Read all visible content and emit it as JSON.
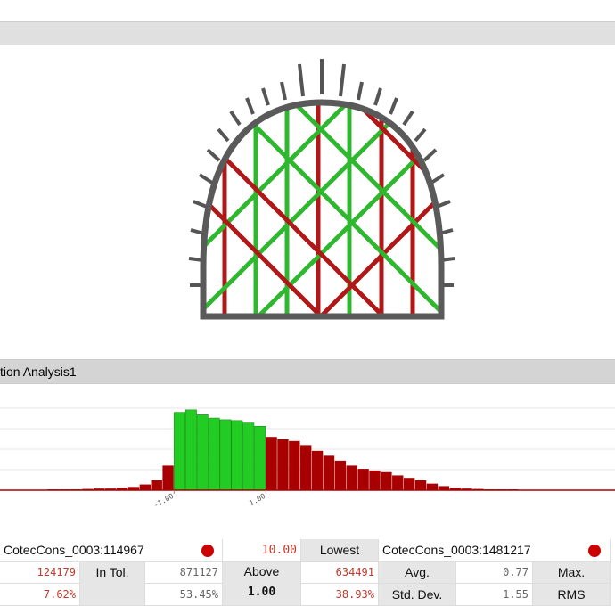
{
  "panel_title": "tion Analysis1",
  "histogram": {
    "type": "histogram",
    "bins": [
      -4.75,
      -4.5,
      -4.25,
      -4,
      -3.75,
      -3.5,
      -3.25,
      -3,
      -2.75,
      -2.5,
      -2.25,
      -2,
      -1.75,
      -1.5,
      -1.25,
      -1,
      -0.75,
      -0.5,
      -0.25,
      0,
      0.25,
      0.5,
      0.75,
      1,
      1.25,
      1.5,
      1.75,
      2,
      2.25,
      2.5,
      2.75,
      3,
      3.25,
      3.5,
      3.75,
      4,
      4.25,
      4.5,
      4.75,
      5,
      5.25,
      5.5,
      5.75,
      6,
      6.25,
      6.5,
      6.75,
      7,
      7.25,
      7.5,
      7.75,
      8,
      8.25,
      8.5
    ],
    "values": [
      0.5,
      0.5,
      0.5,
      0.5,
      1,
      1,
      1,
      1.5,
      2,
      2,
      3,
      4,
      7,
      12,
      30,
      95,
      98,
      92,
      88,
      86,
      85,
      82,
      78,
      65,
      62,
      60,
      55,
      48,
      42,
      36,
      30,
      26,
      24,
      22,
      18,
      15,
      12,
      8,
      5,
      3,
      2,
      1.5,
      1,
      1,
      1,
      0.5,
      0.5,
      0.5,
      0.5,
      0.5,
      0.5,
      0.5,
      0.5
    ],
    "xlim": [
      -4.79,
      8.6
    ],
    "ylim": [
      0,
      100
    ],
    "xticks": [
      {
        "value": -1,
        "label": "-1.00"
      },
      {
        "value": 1,
        "label": "1.00"
      }
    ],
    "in_color": "#22cc22",
    "out_color": "#a80000"
  },
  "table": {
    "row0": {
      "name1": "CotecCons_0003:114967",
      "value": "10.00",
      "label": "Lowest",
      "name2": "CotecCons_0003:1481217"
    },
    "row1": {
      "low_count": "124179",
      "in_tol": "In Tol.",
      "in_count": "871127",
      "above": "Above",
      "above_value": "1.00",
      "high_count": "634491",
      "avg": "Avg.",
      "avg_value": "0.77",
      "max": "Max."
    },
    "row2": {
      "low_pct": "7.62%",
      "in_pct": "53.45%",
      "high_pct": "38.93%",
      "std": "Std. Dev.",
      "std_value": "1.55",
      "rms": "RMS"
    }
  }
}
